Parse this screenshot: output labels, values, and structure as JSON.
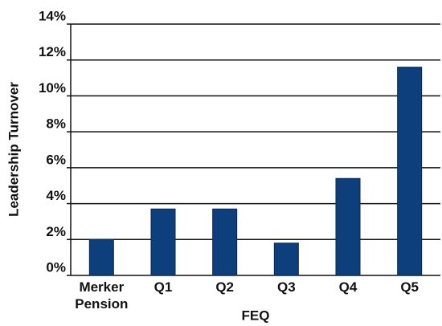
{
  "chart_data": {
    "type": "bar",
    "categories": [
      "Merker Pension",
      "Q1",
      "Q2",
      "Q3",
      "Q4",
      "Q5"
    ],
    "values": [
      2.0,
      3.7,
      3.7,
      1.8,
      5.4,
      11.6
    ],
    "color": "#0d3f7c",
    "xlabel": "FEQ",
    "ylabel": "Leadership Turnover",
    "ylim": [
      0,
      14
    ],
    "yticks": [
      {
        "value": 0,
        "label": "0%"
      },
      {
        "value": 2,
        "label": "2%"
      },
      {
        "value": 4,
        "label": "4%"
      },
      {
        "value": 6,
        "label": "6%"
      },
      {
        "value": 8,
        "label": "8%"
      },
      {
        "value": 10,
        "label": "10%"
      },
      {
        "value": 12,
        "label": "12%"
      },
      {
        "value": 14,
        "label": "14%"
      }
    ],
    "grid": true
  }
}
